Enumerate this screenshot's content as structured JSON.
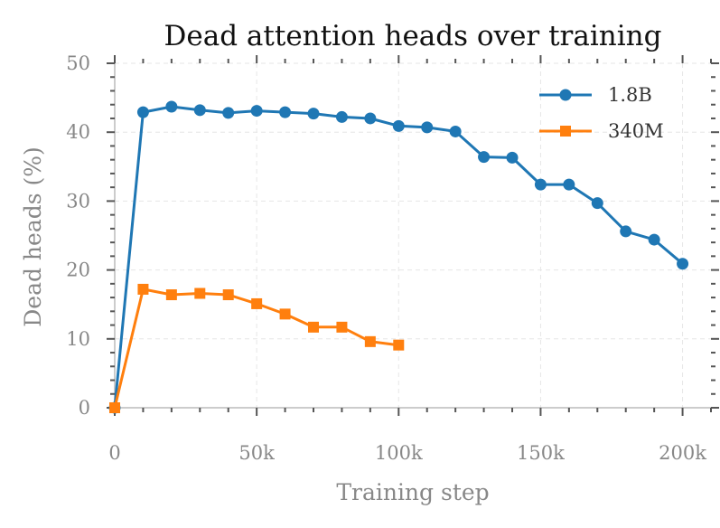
{
  "chart_data": {
    "type": "line",
    "title": "Dead attention heads over training",
    "xlabel": "Training step",
    "ylabel": "Dead heads (%)",
    "xlim": [
      0,
      210000
    ],
    "ylim": [
      0,
      50
    ],
    "x_ticks": [
      0,
      50000,
      100000,
      150000,
      200000
    ],
    "x_tick_labels": [
      "0",
      "50k",
      "100k",
      "150k",
      "200k"
    ],
    "y_ticks": [
      0,
      10,
      20,
      30,
      40,
      50
    ],
    "y_tick_labels": [
      "0",
      "10",
      "20",
      "30",
      "40",
      "50"
    ],
    "grid": true,
    "legend_position": "top-right",
    "series": [
      {
        "name": "1.8B",
        "color": "#1f77b4",
        "marker": "circle",
        "x": [
          0,
          10000,
          20000,
          30000,
          40000,
          50000,
          60000,
          70000,
          80000,
          90000,
          100000,
          110000,
          120000,
          130000,
          140000,
          150000,
          160000,
          170000,
          180000,
          190000,
          200000
        ],
        "values": [
          0,
          42.9,
          43.7,
          43.2,
          42.8,
          43.1,
          42.9,
          42.7,
          42.2,
          42.0,
          40.9,
          40.7,
          40.1,
          36.4,
          36.3,
          32.4,
          32.4,
          29.7,
          25.6,
          24.4,
          20.9
        ]
      },
      {
        "name": "340M",
        "color": "#ff7f0e",
        "marker": "square",
        "x": [
          0,
          10000,
          20000,
          30000,
          40000,
          50000,
          60000,
          70000,
          80000,
          90000,
          100000
        ],
        "values": [
          0,
          17.2,
          16.4,
          16.6,
          16.4,
          15.1,
          13.6,
          11.7,
          11.7,
          9.6,
          9.1
        ]
      }
    ]
  }
}
